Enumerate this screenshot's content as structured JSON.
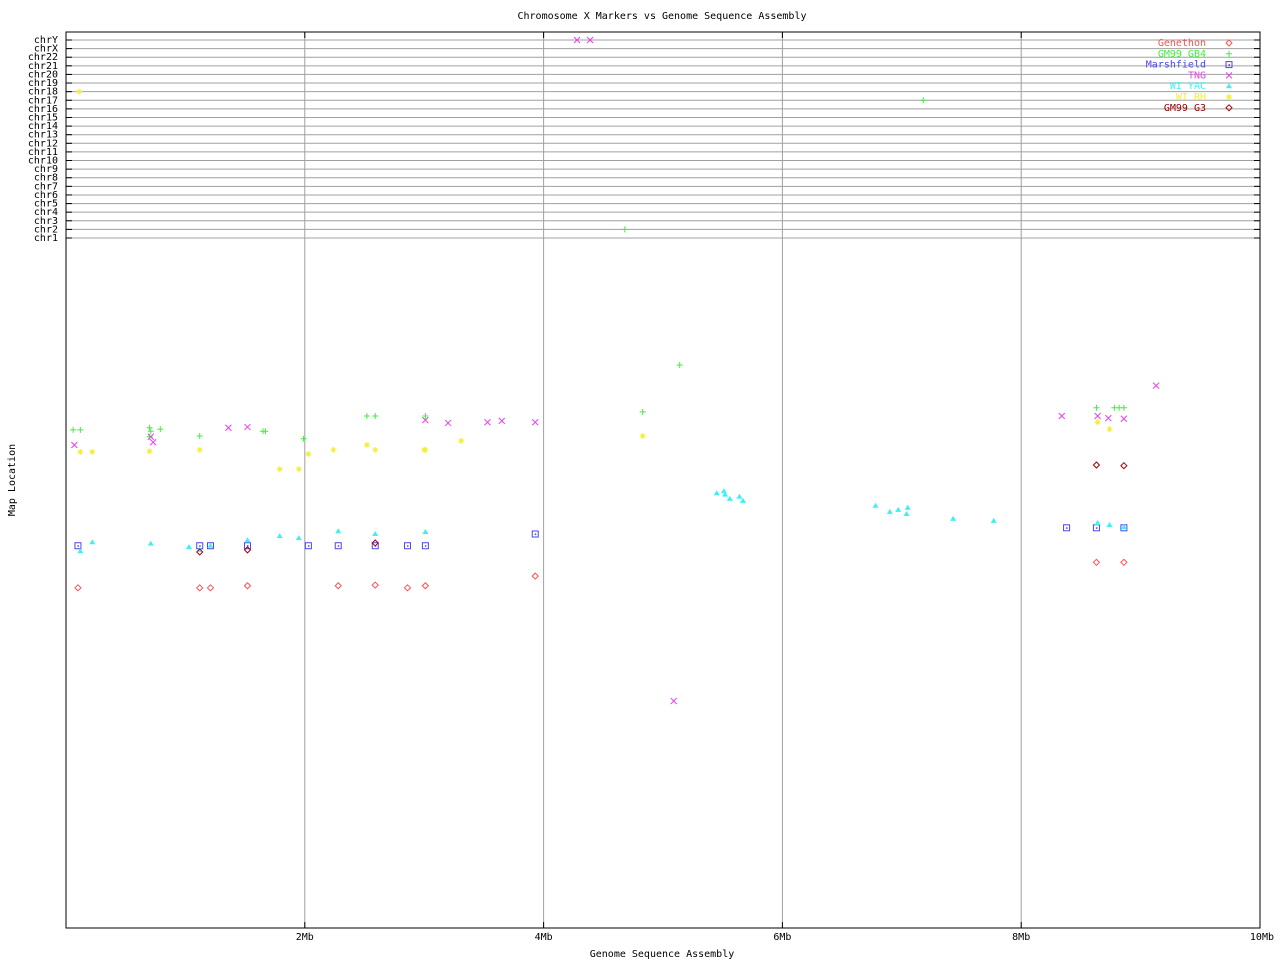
{
  "chart_data": {
    "type": "scatter",
    "title": "Chromosome X Markers vs Genome Sequence Assembly",
    "xlabel": "Genome Sequence Assembly",
    "ylabel": "Map Location",
    "xlim": [
      0,
      10
    ],
    "x_unit": "Mb",
    "x_ticks": [
      {
        "v": 2,
        "label": "2Mb"
      },
      {
        "v": 4,
        "label": "4Mb"
      },
      {
        "v": 6,
        "label": "6Mb"
      },
      {
        "v": 8,
        "label": "8Mb"
      },
      {
        "v": 10,
        "label": "10Mb"
      }
    ],
    "chromosome_ticks": [
      "chr1",
      "chr2",
      "chr3",
      "chr4",
      "chr5",
      "chr6",
      "chr7",
      "chr8",
      "chr9",
      "chr10",
      "chr11",
      "chr12",
      "chr13",
      "chr14",
      "chr15",
      "chr16",
      "chr17",
      "chr18",
      "chr19",
      "chr20",
      "chr21",
      "chr22",
      "chrX",
      "chrY"
    ],
    "map_ylim": [
      0,
      100
    ],
    "grid": true,
    "legend_placement": "top-right",
    "series": [
      {
        "name": "Genethon",
        "color": "#ff5050",
        "marker": "diamond",
        "points": [
          [
            0.1,
            49.3
          ],
          [
            1.12,
            49.3
          ],
          [
            1.21,
            49.3
          ],
          [
            1.52,
            49.6
          ],
          [
            2.28,
            49.6
          ],
          [
            2.59,
            49.7
          ],
          [
            2.86,
            49.3
          ],
          [
            3.01,
            49.6
          ],
          [
            3.93,
            51.0
          ],
          [
            8.63,
            53.0
          ],
          [
            8.86,
            53.0
          ]
        ],
        "chr_points": []
      },
      {
        "name": "GM99 GB4",
        "color": "#40ee40",
        "marker": "plus",
        "points": [
          [
            0.06,
            72.2
          ],
          [
            0.12,
            72.2
          ],
          [
            0.7,
            72.5
          ],
          [
            0.71,
            72.0
          ],
          [
            0.79,
            72.3
          ],
          [
            0.7,
            71.2
          ],
          [
            1.12,
            71.3
          ],
          [
            1.65,
            72.0
          ],
          [
            1.67,
            72.0
          ],
          [
            1.99,
            70.9
          ],
          [
            2.52,
            74.2
          ],
          [
            2.59,
            74.2
          ],
          [
            3.01,
            74.2
          ],
          [
            5.14,
            81.6
          ],
          [
            4.83,
            74.8
          ],
          [
            8.63,
            75.4
          ],
          [
            8.78,
            75.4
          ],
          [
            8.82,
            75.4
          ],
          [
            8.86,
            75.4
          ]
        ],
        "chr_points": [
          {
            "x": 4.68,
            "chr": "chr2"
          },
          {
            "x": 7.18,
            "chr": "chr17"
          }
        ]
      },
      {
        "name": "Marshfield",
        "color": "#4848ee",
        "marker": "square",
        "points": [
          [
            0.1,
            55.4
          ],
          [
            1.12,
            55.4
          ],
          [
            1.21,
            55.4
          ],
          [
            1.52,
            55.4
          ],
          [
            2.03,
            55.4
          ],
          [
            2.28,
            55.4
          ],
          [
            2.59,
            55.4
          ],
          [
            2.86,
            55.4
          ],
          [
            3.01,
            55.4
          ],
          [
            3.93,
            57.1
          ],
          [
            8.38,
            58.0
          ],
          [
            8.63,
            58.0
          ],
          [
            8.86,
            58.0
          ]
        ],
        "chr_points": []
      },
      {
        "name": "TNG",
        "color": "#ee40ee",
        "marker": "cross",
        "points": [
          [
            0.07,
            70.0
          ],
          [
            0.73,
            70.4
          ],
          [
            0.71,
            71.2
          ],
          [
            1.36,
            72.5
          ],
          [
            1.52,
            72.6
          ],
          [
            3.01,
            73.6
          ],
          [
            3.2,
            73.2
          ],
          [
            3.53,
            73.3
          ],
          [
            3.65,
            73.5
          ],
          [
            3.93,
            73.3
          ],
          [
            5.09,
            32.9
          ],
          [
            9.13,
            78.6
          ],
          [
            8.34,
            74.2
          ],
          [
            8.64,
            74.2
          ],
          [
            8.73,
            73.9
          ],
          [
            8.86,
            73.8
          ]
        ],
        "chr_points": [
          {
            "x": 4.28,
            "chr": "chrY"
          },
          {
            "x": 4.39,
            "chr": "chrY"
          }
        ]
      },
      {
        "name": "WI YAC",
        "color": "#40f0f0",
        "marker": "triangle",
        "points": [
          [
            0.12,
            54.6
          ],
          [
            0.22,
            55.9
          ],
          [
            0.71,
            55.7
          ],
          [
            1.03,
            55.2
          ],
          [
            1.12,
            54.8
          ],
          [
            1.21,
            55.4
          ],
          [
            1.52,
            56.2
          ],
          [
            1.79,
            56.8
          ],
          [
            1.95,
            56.5
          ],
          [
            2.28,
            57.5
          ],
          [
            2.59,
            57.1
          ],
          [
            3.01,
            57.4
          ],
          [
            5.45,
            63.0
          ],
          [
            5.51,
            63.3
          ],
          [
            5.52,
            62.8
          ],
          [
            5.56,
            62.2
          ],
          [
            5.64,
            62.5
          ],
          [
            5.67,
            61.9
          ],
          [
            6.78,
            61.2
          ],
          [
            6.9,
            60.3
          ],
          [
            6.97,
            60.6
          ],
          [
            7.04,
            60.0
          ],
          [
            7.05,
            60.9
          ],
          [
            7.43,
            59.3
          ],
          [
            7.77,
            59.0
          ],
          [
            8.64,
            58.7
          ],
          [
            8.74,
            58.4
          ],
          [
            8.86,
            58.1
          ]
        ],
        "chr_points": []
      },
      {
        "name": "WI RH",
        "color": "#f0f030",
        "marker": "star",
        "points": [
          [
            0.12,
            69.0
          ],
          [
            0.22,
            69.0
          ],
          [
            0.7,
            69.1
          ],
          [
            1.12,
            69.3
          ],
          [
            1.79,
            66.5
          ],
          [
            1.95,
            66.5
          ],
          [
            2.03,
            68.7
          ],
          [
            2.24,
            69.3
          ],
          [
            2.52,
            70.0
          ],
          [
            2.59,
            69.3
          ],
          [
            3.0,
            69.3
          ],
          [
            3.01,
            69.3
          ],
          [
            3.31,
            70.6
          ],
          [
            4.83,
            71.3
          ],
          [
            8.64,
            73.3
          ],
          [
            8.74,
            72.3
          ]
        ],
        "chr_points": [
          {
            "x": 0.11,
            "chr": "chr18"
          }
        ]
      },
      {
        "name": "GM99 G3",
        "color": "#a00000",
        "marker": "diamond",
        "points": [
          [
            1.12,
            54.5
          ],
          [
            1.52,
            54.8
          ],
          [
            2.59,
            55.8
          ],
          [
            8.63,
            67.1
          ],
          [
            8.86,
            67.0
          ]
        ],
        "chr_points": []
      }
    ]
  }
}
